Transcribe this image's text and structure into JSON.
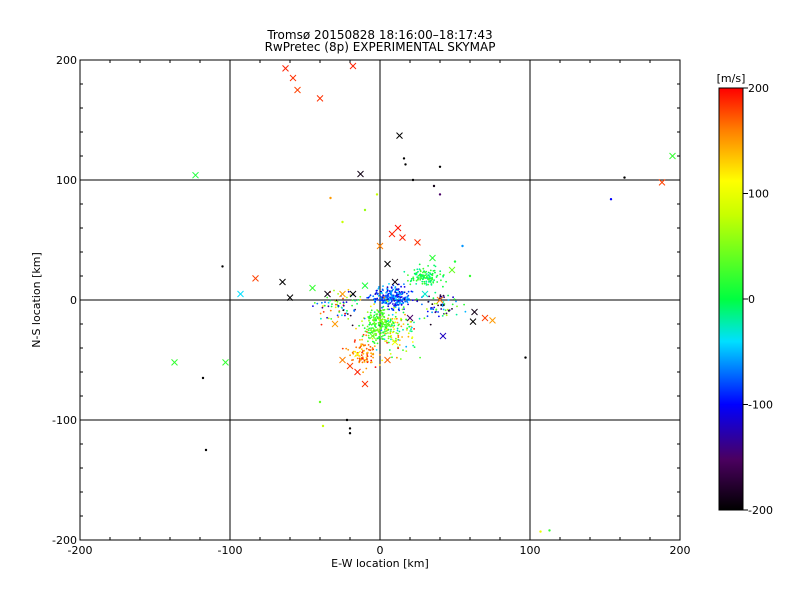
{
  "chart_data": {
    "type": "scatter",
    "title": "Tromsø 20150828 18:16:00–18:17:43",
    "subtitle": "RwPretec (8p) EXPERIMENTAL SKYMAP",
    "xlabel": "E-W location [km]",
    "ylabel": "N-S location [km]",
    "xlim": [
      -200,
      200
    ],
    "ylim": [
      -200,
      200
    ],
    "x_ticks": [
      "-200",
      "-100",
      "0",
      "100",
      "200"
    ],
    "y_ticks": [
      "-200",
      "-100",
      "0",
      "100",
      "200"
    ],
    "grid": true,
    "colorbar": {
      "label": "[m/s]",
      "range": [
        -200,
        200
      ],
      "ticks": [
        "200",
        "100",
        "0",
        "-100",
        "-200"
      ],
      "colormap": "black-purple-blue-cyan-green-yellow-red"
    },
    "series": [
      {
        "marker": "x",
        "points": [
          {
            "x": -63,
            "y": 193,
            "v": 190
          },
          {
            "x": -58,
            "y": 185,
            "v": 185
          },
          {
            "x": -55,
            "y": 175,
            "v": 180
          },
          {
            "x": -40,
            "y": 168,
            "v": 185
          },
          {
            "x": -18,
            "y": 195,
            "v": 190
          },
          {
            "x": 13,
            "y": 137,
            "v": -200
          },
          {
            "x": -13,
            "y": 105,
            "v": -190
          },
          {
            "x": -123,
            "y": 104,
            "v": 10
          },
          {
            "x": 195,
            "y": 120,
            "v": 20
          },
          {
            "x": 188,
            "y": 98,
            "v": 180
          },
          {
            "x": -83,
            "y": 18,
            "v": 180
          },
          {
            "x": -93,
            "y": 5,
            "v": -40
          },
          {
            "x": -65,
            "y": 15,
            "v": -200
          },
          {
            "x": -60,
            "y": 2,
            "v": -200
          },
          {
            "x": -137,
            "y": -52,
            "v": 20
          },
          {
            "x": -103,
            "y": -52,
            "v": 20
          },
          {
            "x": -35,
            "y": 5,
            "v": -190
          },
          {
            "x": -25,
            "y": 5,
            "v": 150
          },
          {
            "x": -18,
            "y": 5,
            "v": -200
          },
          {
            "x": 0,
            "y": 45,
            "v": 160
          },
          {
            "x": 8,
            "y": 55,
            "v": 190
          },
          {
            "x": 12,
            "y": 60,
            "v": 195
          },
          {
            "x": 15,
            "y": 52,
            "v": 190
          },
          {
            "x": 25,
            "y": 48,
            "v": 185
          },
          {
            "x": 5,
            "y": 30,
            "v": -200
          },
          {
            "x": 10,
            "y": 15,
            "v": -190
          },
          {
            "x": 63,
            "y": -10,
            "v": -190
          },
          {
            "x": 62,
            "y": -18,
            "v": -200
          },
          {
            "x": 70,
            "y": -15,
            "v": 180
          },
          {
            "x": 75,
            "y": -17,
            "v": 150
          },
          {
            "x": 40,
            "y": 0,
            "v": 160
          },
          {
            "x": 42,
            "y": -30,
            "v": -120
          },
          {
            "x": 48,
            "y": 25,
            "v": 40
          },
          {
            "x": -5,
            "y": -30,
            "v": 40
          },
          {
            "x": -15,
            "y": -45,
            "v": 110
          },
          {
            "x": -20,
            "y": -55,
            "v": 180
          },
          {
            "x": -15,
            "y": -60,
            "v": 190
          },
          {
            "x": -10,
            "y": -70,
            "v": 185
          },
          {
            "x": -25,
            "y": -50,
            "v": 160
          },
          {
            "x": 5,
            "y": -20,
            "v": 30
          },
          {
            "x": 10,
            "y": -35,
            "v": 100
          },
          {
            "x": 20,
            "y": -15,
            "v": -150
          },
          {
            "x": 30,
            "y": 5,
            "v": -30
          },
          {
            "x": -45,
            "y": 10,
            "v": 20
          },
          {
            "x": -10,
            "y": 12,
            "v": 10
          },
          {
            "x": 35,
            "y": 35,
            "v": 15
          },
          {
            "x": -30,
            "y": -20,
            "v": 150
          },
          {
            "x": 5,
            "y": -50,
            "v": 170
          }
        ]
      },
      {
        "marker": "dot",
        "points": [
          {
            "x": 16,
            "y": 118,
            "v": -200
          },
          {
            "x": 17,
            "y": 113,
            "v": -200
          },
          {
            "x": 22,
            "y": 100,
            "v": -200
          },
          {
            "x": 40,
            "y": 111,
            "v": -200
          },
          {
            "x": 36,
            "y": 95,
            "v": -190
          },
          {
            "x": 40,
            "y": 88,
            "v": -150
          },
          {
            "x": 163,
            "y": 102,
            "v": -200
          },
          {
            "x": 154,
            "y": 84,
            "v": -100
          },
          {
            "x": -2,
            "y": 88,
            "v": 80
          },
          {
            "x": -33,
            "y": 85,
            "v": 150
          },
          {
            "x": -105,
            "y": 28,
            "v": -200
          },
          {
            "x": -118,
            "y": -65,
            "v": -200
          },
          {
            "x": -116,
            "y": -125,
            "v": -200
          },
          {
            "x": -22,
            "y": -100,
            "v": -200
          },
          {
            "x": -20,
            "y": -107,
            "v": -200
          },
          {
            "x": -20,
            "y": -111,
            "v": -200
          },
          {
            "x": -40,
            "y": -85,
            "v": 40
          },
          {
            "x": -38,
            "y": -105,
            "v": 80
          },
          {
            "x": 97,
            "y": -48,
            "v": -200
          },
          {
            "x": 107,
            "y": -193,
            "v": 100
          },
          {
            "x": 113,
            "y": -192,
            "v": 20
          },
          {
            "x": -25,
            "y": 65,
            "v": 80
          },
          {
            "x": -10,
            "y": 75,
            "v": 60
          },
          {
            "x": 55,
            "y": 45,
            "v": -60
          },
          {
            "x": 50,
            "y": 32,
            "v": 10
          },
          {
            "x": 60,
            "y": 20,
            "v": 20
          }
        ]
      }
    ]
  }
}
